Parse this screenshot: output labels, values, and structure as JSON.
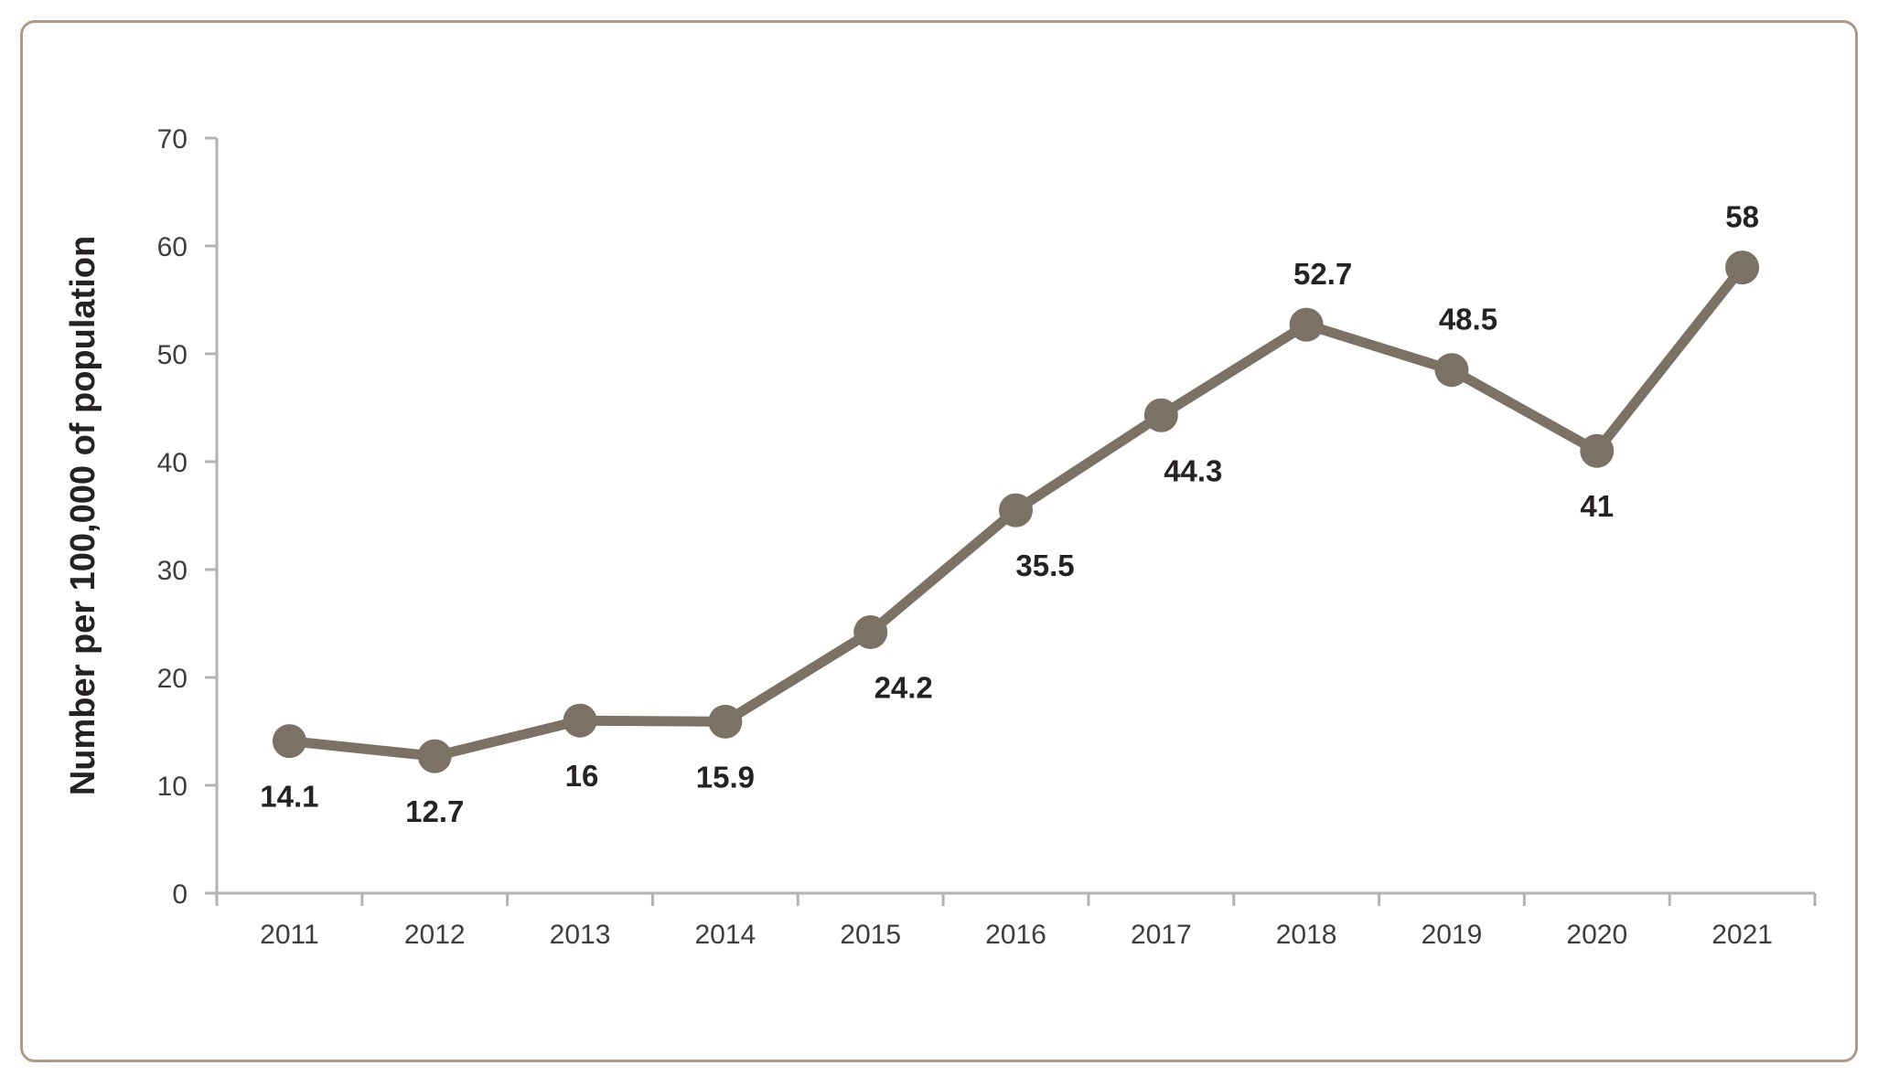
{
  "chart_data": {
    "type": "line",
    "title": "",
    "xlabel": "",
    "ylabel": "Number per 100,000 of population",
    "ylim": [
      0,
      70
    ],
    "ytick_step": 10,
    "ytick_labels": [
      "0",
      "10",
      "20",
      "30",
      "40",
      "50",
      "60",
      "70"
    ],
    "grid": false,
    "legend": "none",
    "categories": [
      "2011",
      "2012",
      "2013",
      "2014",
      "2015",
      "2016",
      "2017",
      "2018",
      "2019",
      "2020",
      "2021"
    ],
    "series": [
      {
        "name": "Number per 100,000 of population",
        "values": [
          14.1,
          12.7,
          16,
          15.9,
          24.2,
          35.5,
          44.3,
          52.7,
          48.5,
          41,
          58
        ]
      }
    ],
    "points": [
      {
        "x": "2011",
        "value": 14.1,
        "label": "14.1",
        "label_position": "below",
        "label_dx": 0
      },
      {
        "x": "2012",
        "value": 12.7,
        "label": "12.7",
        "label_position": "below",
        "label_dx": 0
      },
      {
        "x": "2013",
        "value": 16,
        "label": "16",
        "label_position": "below",
        "label_dx": 2
      },
      {
        "x": "2014",
        "value": 15.9,
        "label": "15.9",
        "label_position": "below",
        "label_dx": 0
      },
      {
        "x": "2015",
        "value": 24.2,
        "label": "24.2",
        "label_position": "below",
        "label_dx": 36
      },
      {
        "x": "2016",
        "value": 35.5,
        "label": "35.5",
        "label_position": "below",
        "label_dx": 32
      },
      {
        "x": "2017",
        "value": 44.3,
        "label": "44.3",
        "label_position": "below",
        "label_dx": 35
      },
      {
        "x": "2018",
        "value": 52.7,
        "label": "52.7",
        "label_position": "above",
        "label_dx": 18
      },
      {
        "x": "2019",
        "value": 48.5,
        "label": "48.5",
        "label_position": "above",
        "label_dx": 18
      },
      {
        "x": "2020",
        "value": 41,
        "label": "41",
        "label_position": "below",
        "label_dx": 0
      },
      {
        "x": "2021",
        "value": 58,
        "label": "58",
        "label_position": "above",
        "label_dx": 0
      }
    ],
    "colors": {
      "line": "#7b7164",
      "marker": "#7b7164",
      "axis": "#b3b3b3",
      "tick_label": "#3d3d3d",
      "data_label": "#262122",
      "card_border": "#ab9a86",
      "background": "#ffffff"
    }
  }
}
